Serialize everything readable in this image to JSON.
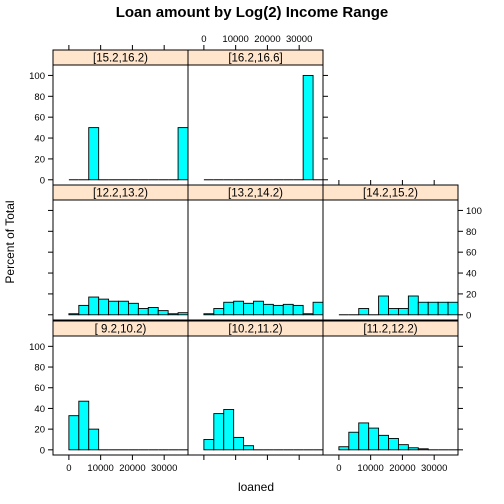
{
  "chart_data": {
    "type": "bar",
    "title": "Loan amount by Log(2) Income Range",
    "xlabel": "loaned",
    "ylabel": "Percent of Total",
    "xlim": [
      -5000,
      37500
    ],
    "ylim": [
      -5,
      110
    ],
    "x_ticks": [
      0,
      10000,
      20000,
      30000
    ],
    "y_ticks": [
      0,
      20,
      40,
      60,
      80,
      100
    ],
    "bin_edges": [
      0,
      3125,
      6250,
      9375,
      12500,
      15625,
      18750,
      21875,
      25000,
      28125,
      31250,
      34375,
      37500
    ],
    "panels": [
      {
        "label": "[ 9.2,10.2)",
        "values": [
          33,
          47,
          20,
          0,
          0,
          0,
          0,
          0,
          0,
          0,
          0,
          0
        ]
      },
      {
        "label": "[10.2,11.2)",
        "values": [
          10,
          35,
          39,
          12,
          4,
          0,
          0,
          0,
          0,
          0,
          0,
          0
        ]
      },
      {
        "label": "[11.2,12.2)",
        "values": [
          3,
          17,
          26,
          21,
          14,
          11,
          5,
          2,
          1,
          0,
          0,
          0
        ]
      },
      {
        "label": "[12.2,13.2)",
        "values": [
          1,
          9,
          17,
          15,
          13,
          13,
          11,
          6,
          7,
          4,
          1,
          2
        ]
      },
      {
        "label": "[13.2,14.2)",
        "values": [
          1,
          6,
          12,
          13,
          11,
          13,
          10,
          9,
          10,
          9,
          1,
          12
        ]
      },
      {
        "label": "[14.2,15.2)",
        "values": [
          0,
          0,
          6,
          0,
          18,
          6,
          6,
          18,
          12,
          12,
          12,
          12
        ]
      },
      {
        "label": "[15.2,16.2)",
        "values": [
          0,
          0,
          50,
          0,
          0,
          0,
          0,
          0,
          0,
          0,
          0,
          50
        ]
      },
      {
        "label": "[16.2,16.6]",
        "values": [
          0,
          0,
          0,
          0,
          0,
          0,
          0,
          0,
          0,
          0,
          100,
          0
        ]
      }
    ]
  }
}
